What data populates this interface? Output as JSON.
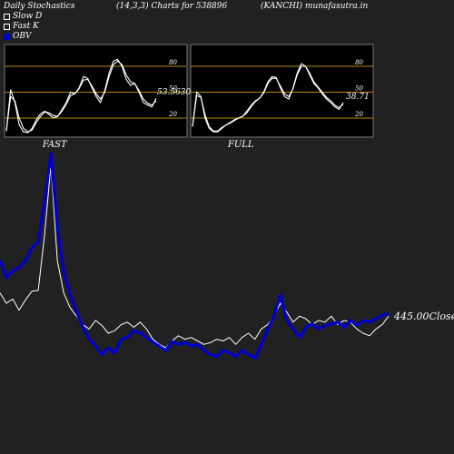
{
  "header": {
    "left": "Daily Stochastics",
    "params": "(14,3,3) Charts for 538896",
    "site": "(KANCHI) munafasutra.in"
  },
  "legend": [
    {
      "label": "Slow  D",
      "color": "#ffffff",
      "filled": false
    },
    {
      "label": "Fast  K",
      "color": "#ffffff",
      "filled": false
    },
    {
      "label": "OBV",
      "color": "#0000cc",
      "filled": true
    }
  ],
  "colors": {
    "background": "#212121",
    "panel": "#000000",
    "level_lines": "#b8860b",
    "price_line": "#ffffff",
    "obv_line": "#0000cc"
  },
  "chart_data": [
    {
      "type": "line",
      "title": "FAST",
      "ylim": [
        0,
        100
      ],
      "yticks": [
        20,
        50,
        80
      ],
      "value_label": "53.5630",
      "series": [
        {
          "name": "Fast K",
          "values": [
            5,
            53,
            38,
            12,
            4,
            3,
            8,
            18,
            25,
            28,
            24,
            20,
            22,
            30,
            38,
            50,
            48,
            55,
            68,
            66,
            55,
            45,
            38,
            52,
            72,
            86,
            88,
            80,
            65,
            58,
            60,
            50,
            38,
            35,
            33,
            43
          ]
        },
        {
          "name": "Slow D",
          "values": [
            5,
            45,
            40,
            20,
            8,
            4,
            6,
            15,
            22,
            27,
            26,
            23,
            22,
            28,
            36,
            46,
            48,
            54,
            64,
            65,
            57,
            48,
            42,
            50,
            68,
            82,
            86,
            82,
            70,
            62,
            60,
            52,
            42,
            37,
            35,
            40
          ]
        }
      ]
    },
    {
      "type": "line",
      "title": "FULL",
      "ylim": [
        0,
        100
      ],
      "yticks": [
        20,
        50,
        80
      ],
      "value_label": "38.71",
      "series": [
        {
          "name": "Fast K",
          "values": [
            10,
            50,
            45,
            20,
            8,
            4,
            4,
            8,
            12,
            15,
            18,
            20,
            22,
            28,
            35,
            40,
            43,
            50,
            62,
            68,
            67,
            55,
            45,
            42,
            55,
            72,
            83,
            80,
            70,
            60,
            55,
            48,
            42,
            38,
            33,
            30,
            38
          ]
        },
        {
          "name": "Slow D",
          "values": [
            10,
            46,
            44,
            24,
            10,
            5,
            5,
            9,
            12,
            14,
            17,
            20,
            22,
            26,
            33,
            39,
            43,
            49,
            60,
            66,
            66,
            57,
            48,
            45,
            54,
            70,
            80,
            80,
            72,
            62,
            56,
            50,
            44,
            40,
            35,
            32,
            36
          ]
        }
      ]
    },
    {
      "type": "line",
      "title": "",
      "price_label": "445.00",
      "close_label": "Close",
      "series": [
        {
          "name": "Price",
          "values": [
            318,
            330,
            325,
            338,
            326,
            316,
            315,
            250,
            168,
            280,
            318,
            335,
            345,
            355,
            360,
            350,
            356,
            365,
            362,
            355,
            352,
            358,
            352,
            360,
            372,
            378,
            382,
            374,
            368,
            372,
            370,
            374,
            378,
            376,
            372,
            374,
            370,
            378,
            370,
            365,
            372,
            360,
            355,
            345,
            330,
            340,
            352,
            345,
            348,
            355,
            350,
            352,
            345,
            355,
            350,
            352,
            360,
            365,
            368,
            360,
            355,
            345
          ]
        },
        {
          "name": "OBV",
          "values": [
            280,
            300,
            292,
            288,
            280,
            265,
            258,
            210,
            155,
            240,
            295,
            320,
            340,
            358,
            372,
            380,
            390,
            382,
            388,
            372,
            370,
            362,
            365,
            370,
            375,
            380,
            385,
            375,
            378,
            376,
            380,
            378,
            385,
            390,
            392,
            385,
            388,
            392,
            385,
            390,
            394,
            378,
            360,
            345,
            320,
            350,
            360,
            370,
            358,
            354,
            360,
            356,
            354,
            352,
            358,
            350,
            356,
            350,
            352,
            348,
            344,
            342
          ]
        }
      ]
    }
  ]
}
